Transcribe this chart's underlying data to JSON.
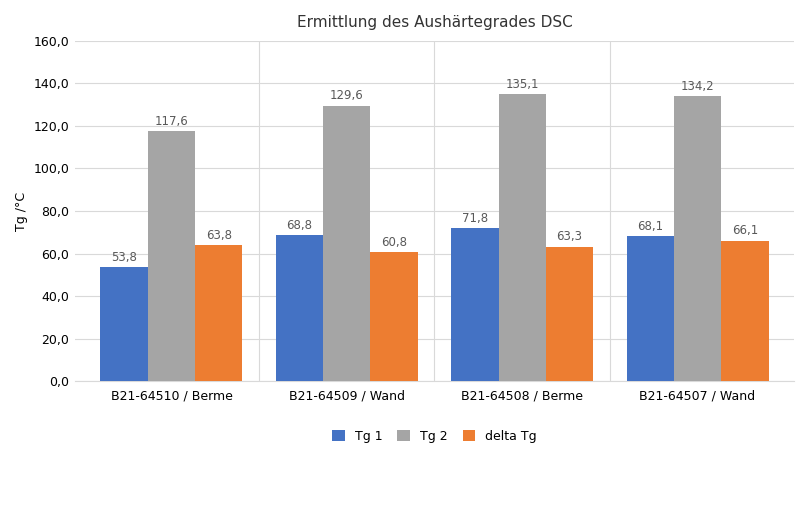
{
  "title": "Ermittlung des Aushärtegrades DSC",
  "categories": [
    "B21-64510 / Berme",
    "B21-64509 / Wand",
    "B21-64508 / Berme",
    "B21-64507 / Wand"
  ],
  "series": [
    {
      "label": "Tg 1",
      "values": [
        53.8,
        68.8,
        71.8,
        68.1
      ],
      "color": "#4472C4"
    },
    {
      "label": "Tg 2",
      "values": [
        117.6,
        129.6,
        135.1,
        134.2
      ],
      "color": "#A5A5A5"
    },
    {
      "label": "delta Tg",
      "values": [
        63.8,
        60.8,
        63.3,
        66.1
      ],
      "color": "#ED7D31"
    }
  ],
  "ylabel": "Tg /°C",
  "ylim": [
    0,
    160
  ],
  "yticks": [
    0,
    20,
    40,
    60,
    80,
    100,
    120,
    140,
    160
  ],
  "ytick_labels": [
    "0,0",
    "20,0",
    "40,0",
    "60,0",
    "80,0",
    "100,0",
    "120,0",
    "140,0",
    "160,0"
  ],
  "bar_width": 0.27,
  "background_color": "#FFFFFF",
  "plot_bg_color": "#FFFFFF",
  "grid_color": "#D9D9D9",
  "vgrid_color": "#D9D9D9",
  "label_fontsize": 8.5,
  "title_fontsize": 11,
  "axis_fontsize": 9,
  "legend_fontsize": 9,
  "label_color": "#595959"
}
